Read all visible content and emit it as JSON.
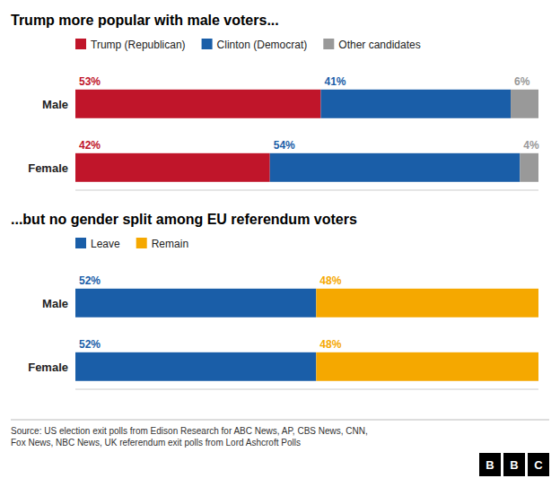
{
  "chart_data": [
    {
      "type": "bar",
      "orientation": "horizontal",
      "stacked": true,
      "title": "Trump more popular with male voters...",
      "categories": [
        "Male",
        "Female"
      ],
      "series": [
        {
          "name": "Trump (Republican)",
          "color": "#c0152a",
          "values": [
            53,
            42
          ],
          "value_labels": [
            "53%",
            "42%"
          ]
        },
        {
          "name": "Clinton (Democrat)",
          "color": "#1a5ea8",
          "values": [
            41,
            54
          ],
          "value_labels": [
            "41%",
            "54%"
          ]
        },
        {
          "name": "Other candidates",
          "color": "#999999",
          "values": [
            6,
            4
          ],
          "value_labels": [
            "6%",
            "4%"
          ]
        }
      ],
      "xlim": [
        0,
        100
      ],
      "grid": false,
      "legend": "top",
      "data_labels": true,
      "tick_labels": "y"
    },
    {
      "type": "bar",
      "orientation": "horizontal",
      "stacked": true,
      "title": "...but no gender split among EU referendum voters",
      "categories": [
        "Male",
        "Female"
      ],
      "series": [
        {
          "name": "Leave",
          "color": "#1a5ea8",
          "values": [
            52,
            52
          ],
          "value_labels": [
            "52%",
            "52%"
          ]
        },
        {
          "name": "Remain",
          "color": "#f5a800",
          "values": [
            48,
            48
          ],
          "value_labels": [
            "48%",
            "48%"
          ]
        }
      ],
      "xlim": [
        0,
        100
      ],
      "grid": false,
      "legend": "top",
      "data_labels": true,
      "tick_labels": "y",
      "annotations": [
        "Source: US election exit polls from Edison Research for ABC News, AP, CBS News, CNN,\nFox News, NBC News, UK referendum exit polls from Lord Ashcroft Polls",
        "BBC"
      ]
    }
  ]
}
